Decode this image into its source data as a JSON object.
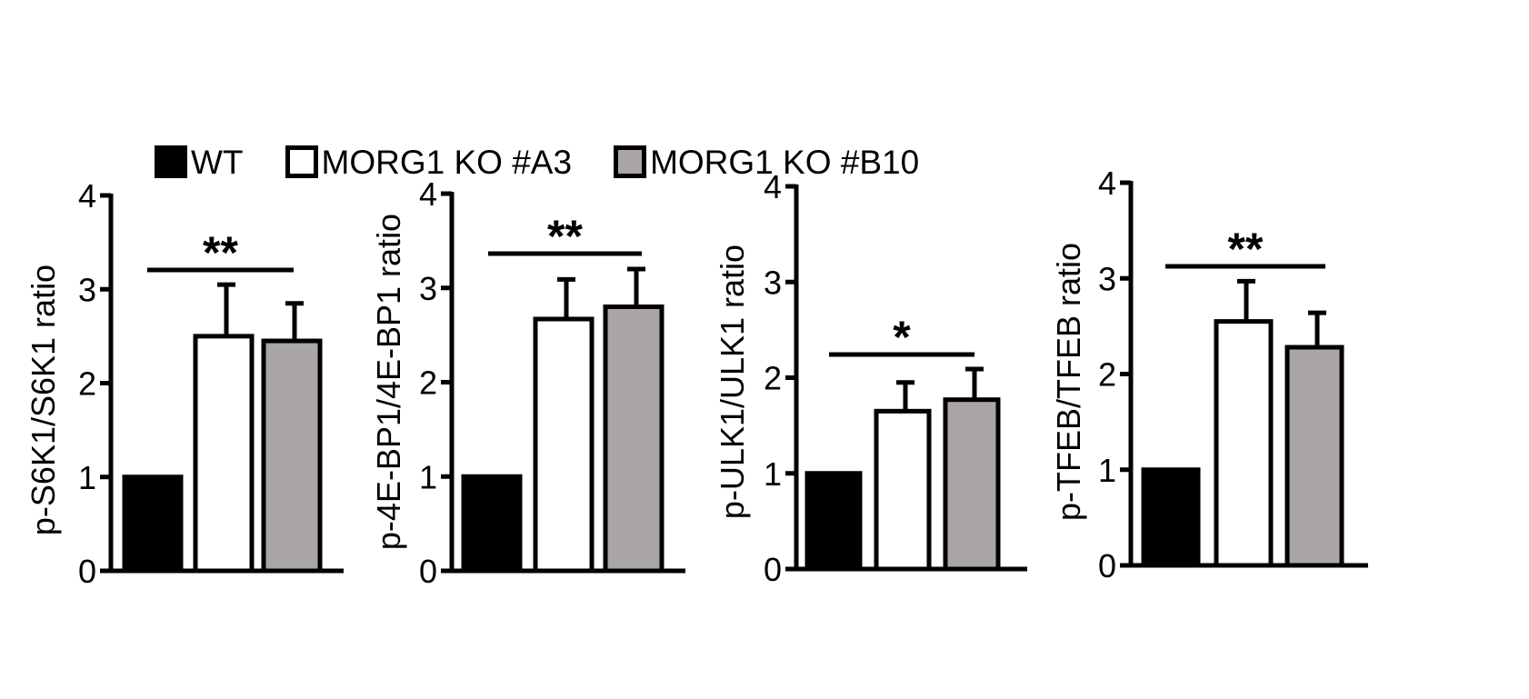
{
  "colors": {
    "axis": "#000000",
    "WT": "#000000",
    "MORG1 KO #A3": "#ffffff",
    "MORG1 KO #B10": "#aaa6a6"
  },
  "legend": {
    "items": [
      {
        "label": "WT",
        "color": "#000000"
      },
      {
        "label": "MORG1 KO #A3",
        "color": "#ffffff"
      },
      {
        "label": "MORG1 KO #B10",
        "color": "#aaa6a6"
      }
    ]
  },
  "chart_data": [
    {
      "type": "bar",
      "categories": [
        "WT",
        "MORG1 KO #A3",
        "MORG1 KO #B10"
      ],
      "values": [
        1.0,
        2.5,
        2.45
      ],
      "error": [
        0,
        0.55,
        0.4
      ],
      "ylabel": "p-S6K1/S6K1 ratio",
      "ylim": [
        0,
        4
      ],
      "yticks": [
        "0",
        "1",
        "2",
        "3",
        "4"
      ],
      "significance": "**"
    },
    {
      "type": "bar",
      "categories": [
        "WT",
        "MORG1 KO #A3",
        "MORG1 KO #B10"
      ],
      "values": [
        1.0,
        2.67,
        2.8
      ],
      "error": [
        0,
        0.42,
        0.4
      ],
      "ylabel": "p-4E-BP1/4E-BP1 ratio",
      "ylim": [
        0,
        4
      ],
      "yticks": [
        "0",
        "1",
        "2",
        "3",
        "4"
      ],
      "significance": "**"
    },
    {
      "type": "bar",
      "categories": [
        "WT",
        "MORG1 KO #A3",
        "MORG1 KO #B10"
      ],
      "values": [
        1.0,
        1.65,
        1.77
      ],
      "error": [
        0,
        0.3,
        0.32
      ],
      "ylabel": "p-ULK1/ULK1 ratio",
      "ylim": [
        0,
        4
      ],
      "yticks": [
        "0",
        "1",
        "2",
        "3",
        "4"
      ],
      "significance": "*"
    },
    {
      "type": "bar",
      "categories": [
        "WT",
        "MORG1 KO #A3",
        "MORG1 KO #B10"
      ],
      "values": [
        1.0,
        2.55,
        2.28
      ],
      "error": [
        0,
        0.42,
        0.36
      ],
      "ylabel": "p-TFEB/TFEB ratio",
      "ylim": [
        0,
        4
      ],
      "yticks": [
        "0",
        "1",
        "2",
        "3",
        "4"
      ],
      "significance": "**"
    }
  ]
}
